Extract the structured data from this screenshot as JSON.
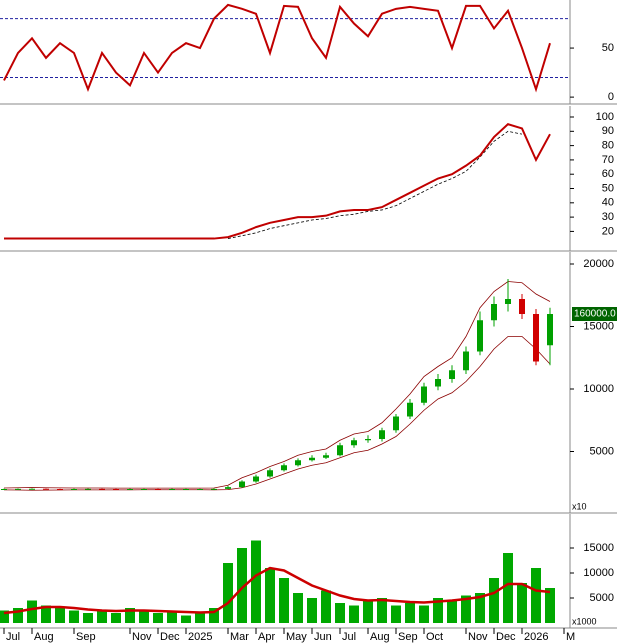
{
  "chart_data": [
    {
      "type": "line",
      "ylim": [
        -6,
        99
      ],
      "yticks": [
        0,
        50
      ],
      "levels": [
        20,
        80
      ],
      "level_color": "#2020a0",
      "color": "#c00000",
      "values": [
        17,
        45,
        60,
        40,
        55,
        45,
        8,
        45,
        25,
        12,
        45,
        25,
        45,
        55,
        50,
        80,
        94,
        90,
        85,
        45,
        93,
        92,
        60,
        40,
        92,
        75,
        62,
        85,
        90,
        92,
        90,
        88,
        50,
        93,
        93,
        70,
        88,
        50,
        8,
        55,
        null
      ]
    },
    {
      "type": "line",
      "ylim": [
        7,
        107
      ],
      "yticks": [
        20,
        30,
        40,
        50,
        60,
        70,
        80,
        90,
        100
      ],
      "color": "#c00000",
      "values": [
        15,
        15,
        15,
        15,
        15,
        15,
        15,
        15,
        15,
        15,
        15,
        15,
        15,
        15,
        15,
        15,
        16,
        19,
        23,
        26,
        28,
        30,
        30,
        31,
        34,
        35,
        35,
        37,
        42,
        47,
        52,
        57,
        60,
        66,
        73,
        86,
        95,
        92,
        70,
        88,
        null
      ],
      "trend": [
        null,
        null,
        null,
        null,
        null,
        null,
        null,
        null,
        null,
        null,
        null,
        null,
        null,
        null,
        null,
        null,
        15,
        17,
        19,
        22,
        24,
        26,
        28,
        29,
        31,
        32,
        34,
        35,
        38,
        43,
        48,
        53,
        57,
        62,
        72,
        83,
        90,
        88,
        null,
        null,
        null
      ],
      "trend_color": "#000000"
    },
    {
      "type": "candlestick",
      "ylim": [
        160,
        20880
      ],
      "yticks": [
        5000,
        10000,
        15000,
        20000
      ],
      "up_color": "#00a000",
      "down_color": "#d00000",
      "band_color": "#8b0000",
      "open": [
        1990,
        2000,
        2010,
        2020,
        2000,
        1990,
        2000,
        2010,
        2000,
        1990,
        2000,
        2000,
        1990,
        2000,
        2000,
        2000,
        2010,
        2150,
        2600,
        3000,
        3500,
        3900,
        4300,
        4500,
        4700,
        5500,
        5900,
        6000,
        6700,
        7800,
        8900,
        10200,
        10800,
        11500,
        13000,
        15500,
        16800,
        17200,
        16000,
        13500,
        null
      ],
      "high": [
        2030,
        2040,
        2050,
        2040,
        2020,
        2030,
        2040,
        2030,
        2020,
        2030,
        2020,
        2020,
        2030,
        2020,
        2020,
        2040,
        2250,
        2700,
        3150,
        3650,
        4050,
        4450,
        4700,
        4900,
        5700,
        6100,
        6300,
        6900,
        8000,
        9200,
        10500,
        11200,
        11900,
        13400,
        16200,
        17400,
        18800,
        17600,
        16400,
        16500,
        null
      ],
      "low": [
        1970,
        1980,
        1990,
        1980,
        1970,
        1970,
        1980,
        1980,
        1970,
        1970,
        1980,
        1970,
        1970,
        1980,
        1980,
        1980,
        1990,
        2100,
        2500,
        2900,
        3400,
        3800,
        4200,
        4400,
        4600,
        5300,
        5700,
        5800,
        6500,
        7600,
        8700,
        9900,
        10500,
        11200,
        12700,
        15000,
        16200,
        15600,
        11900,
        11900,
        null
      ],
      "close": [
        2000,
        2010,
        2020,
        2000,
        1990,
        2000,
        2010,
        2000,
        1990,
        2000,
        2000,
        1990,
        2000,
        2000,
        2000,
        2010,
        2150,
        2600,
        3000,
        3500,
        3900,
        4300,
        4500,
        4700,
        5500,
        5900,
        6000,
        6700,
        7800,
        8900,
        10200,
        10800,
        11500,
        13000,
        15500,
        16800,
        17200,
        16000,
        12200,
        16000,
        null
      ],
      "upper": [
        2080,
        2100,
        2120,
        2100,
        2090,
        2080,
        2080,
        2080,
        2070,
        2070,
        2070,
        2070,
        2070,
        2070,
        2070,
        2080,
        2300,
        2900,
        3300,
        3800,
        4200,
        4700,
        5000,
        5200,
        5900,
        6400,
        6600,
        7300,
        8400,
        9600,
        11000,
        11800,
        12500,
        14200,
        16500,
        17800,
        18600,
        18500,
        17600,
        17000,
        null
      ],
      "lower": [
        1930,
        1920,
        1900,
        1910,
        1920,
        1930,
        1930,
        1930,
        1930,
        1930,
        1940,
        1940,
        1940,
        1940,
        1940,
        1930,
        1950,
        2100,
        2400,
        2800,
        3200,
        3600,
        3900,
        4100,
        4500,
        4900,
        5100,
        5600,
        6200,
        7200,
        8300,
        9200,
        9700,
        10600,
        11800,
        13200,
        14200,
        14200,
        13200,
        12000,
        null
      ],
      "price_tag": "160000.0",
      "unit_label": "x10"
    },
    {
      "type": "bar",
      "ylim": [
        0,
        21600
      ],
      "yticks": [
        5000,
        10000,
        15000
      ],
      "color": "#00a800",
      "ma_color": "#cc0000",
      "unit_label": "x1000",
      "values": [
        2500,
        3000,
        4500,
        3500,
        3000,
        2500,
        2000,
        2500,
        2000,
        3000,
        2500,
        2000,
        2500,
        1500,
        2000,
        3000,
        12000,
        15000,
        16500,
        11000,
        9000,
        6000,
        5000,
        6500,
        4000,
        3500,
        4500,
        5000,
        3500,
        4000,
        3500,
        5000,
        4500,
        5500,
        6000,
        9000,
        14000,
        8000,
        11000,
        7000,
        null
      ],
      "ma": [
        2000,
        2300,
        2800,
        3200,
        3200,
        3000,
        2700,
        2500,
        2400,
        2500,
        2500,
        2400,
        2300,
        2200,
        2100,
        2200,
        4000,
        7000,
        9500,
        11000,
        10500,
        9000,
        7500,
        6500,
        5500,
        4800,
        4500,
        4600,
        4400,
        4200,
        4100,
        4300,
        4500,
        4800,
        5200,
        6000,
        7800,
        7800,
        6500,
        6200,
        null
      ],
      "categories": [
        "Jul",
        null,
        "Aug",
        null,
        null,
        "Sep",
        null,
        null,
        null,
        "Nov",
        null,
        "Dec",
        null,
        "2025",
        null,
        null,
        "Mar",
        null,
        "Apr",
        null,
        "May",
        null,
        "Jun",
        null,
        "Jul",
        null,
        "Aug",
        null,
        "Sep",
        null,
        "Oct",
        null,
        null,
        "Nov",
        null,
        "Dec",
        null,
        "2026",
        null,
        null,
        "M"
      ]
    }
  ]
}
